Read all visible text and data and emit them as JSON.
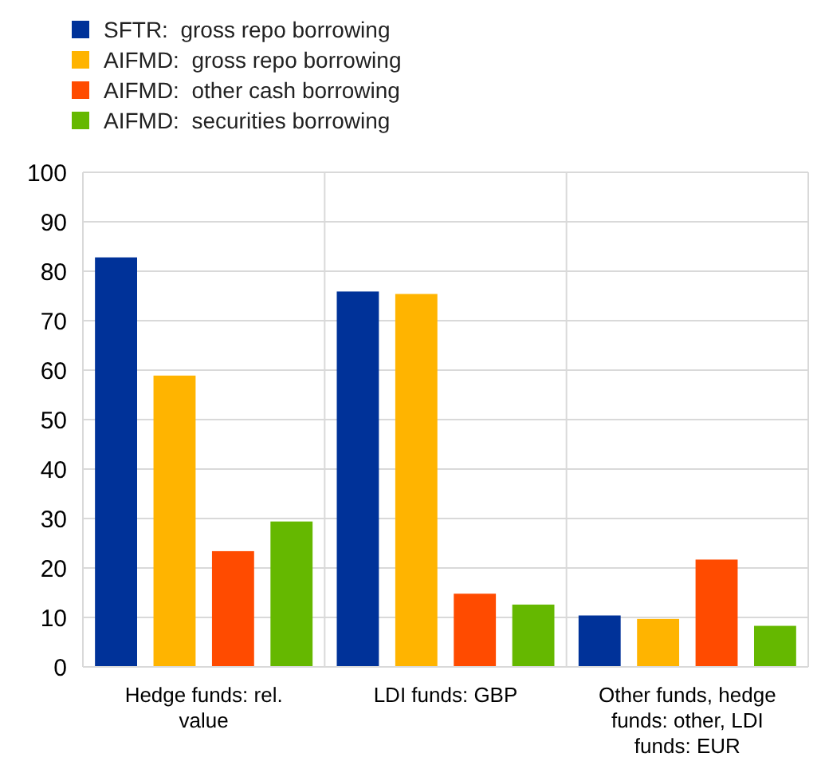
{
  "chart_data": {
    "type": "bar",
    "categories": [
      "Hedge funds: rel. value",
      "LDI funds: GBP",
      "Other funds, hedge funds: other, LDI funds: EUR"
    ],
    "series": [
      {
        "name": "SFTR:  gross repo borrowing",
        "color": "#003299",
        "values": [
          82.8,
          75.9,
          10.4
        ]
      },
      {
        "name": "AIFMD:  gross repo borrowing",
        "color": "#ffb400",
        "values": [
          58.9,
          75.4,
          9.7
        ]
      },
      {
        "name": "AIFMD:  other cash borrowing",
        "color": "#ff4b00",
        "values": [
          23.4,
          14.8,
          21.7
        ]
      },
      {
        "name": "AIFMD:  securities borrowing",
        "color": "#65b800",
        "values": [
          29.4,
          12.6,
          8.3
        ]
      }
    ],
    "ylim": [
      0,
      100
    ],
    "yticks": [
      0,
      10,
      20,
      30,
      40,
      50,
      60,
      70,
      80,
      90,
      100
    ],
    "grid": "y",
    "legend": "top left"
  }
}
